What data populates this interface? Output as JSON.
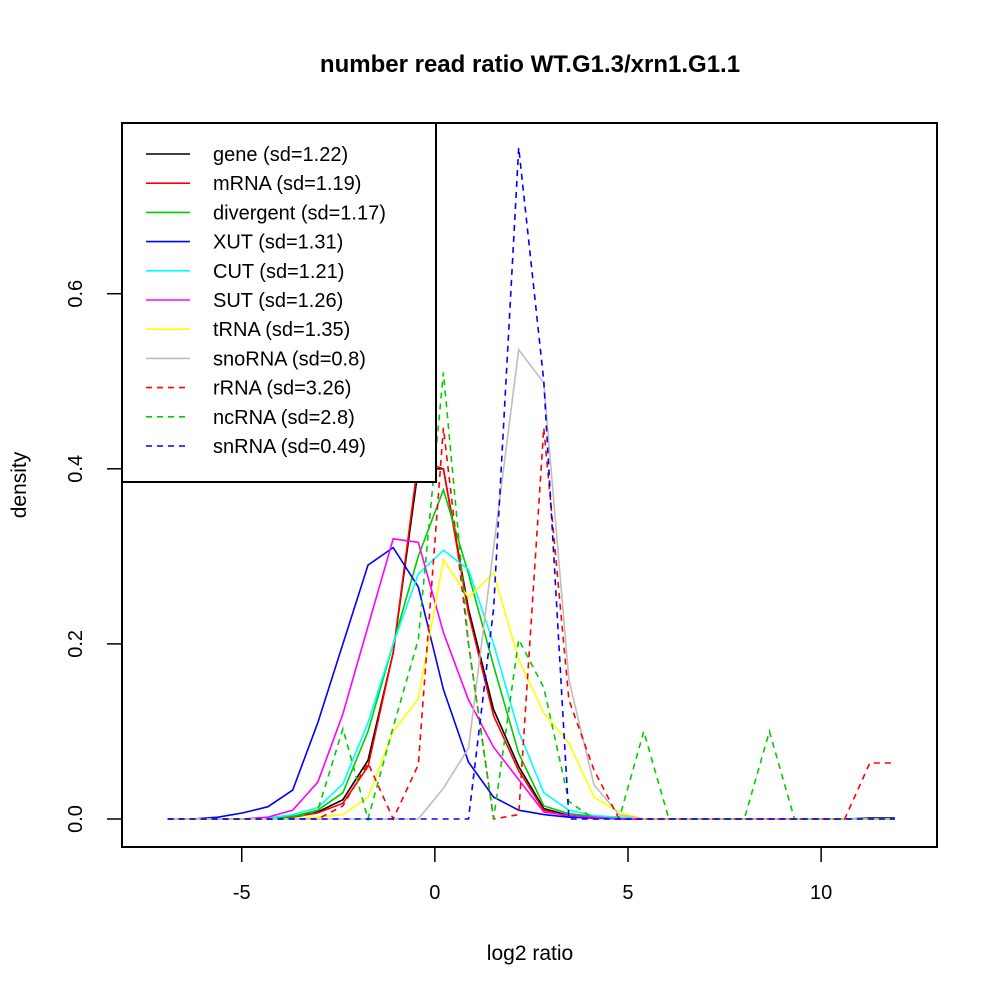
{
  "chart_data": {
    "type": "line",
    "title": "number read ratio WT.G1.3/xrn1.G1.1",
    "xlabel": "log2 ratio",
    "ylabel": "density",
    "xlim": [
      -8.1,
      13.0
    ],
    "ylim": [
      -0.032,
      0.795
    ],
    "xticks": [
      -5,
      0,
      5,
      10
    ],
    "xtick_labels": [
      "-5",
      "0",
      "5",
      "10"
    ],
    "yticks": [
      0.0,
      0.2,
      0.4,
      0.6
    ],
    "ytick_labels": [
      "0.0",
      "0.2",
      "0.4",
      "0.6"
    ],
    "grid": false,
    "legend_position": "top-left",
    "x": [
      -6.92,
      -6.27,
      -5.62,
      -4.97,
      -4.32,
      -3.68,
      -3.03,
      -2.38,
      -1.73,
      -1.08,
      -0.43,
      0.22,
      0.87,
      1.52,
      2.17,
      2.82,
      3.47,
      4.12,
      4.77,
      5.41,
      6.06,
      6.71,
      7.36,
      8.01,
      8.66,
      9.31,
      9.96,
      10.61,
      11.26,
      11.91
    ],
    "series": [
      {
        "name": "gene",
        "legend": "gene (sd=1.22)",
        "color": "#000000",
        "dashed": false,
        "values": [
          0,
          0,
          0,
          0,
          0.001,
          0.003,
          0.008,
          0.022,
          0.067,
          0.19,
          0.4,
          0.4,
          0.24,
          0.125,
          0.06,
          0.012,
          0.004,
          0.002,
          0.001,
          0,
          0,
          0,
          0,
          0,
          0,
          0,
          0,
          0,
          0.001,
          0.001
        ]
      },
      {
        "name": "mRNA",
        "legend": "mRNA (sd=1.19)",
        "color": "#ff0000",
        "dashed": false,
        "values": [
          0,
          0,
          0,
          0,
          0.001,
          0.002,
          0.007,
          0.018,
          0.06,
          0.19,
          0.41,
          0.4,
          0.235,
          0.118,
          0.055,
          0.01,
          0.003,
          0.001,
          0,
          0,
          0,
          0,
          0,
          0,
          0,
          0,
          0,
          0,
          0,
          0
        ]
      },
      {
        "name": "divergent",
        "legend": "divergent (sd=1.17)",
        "color": "#00cd00",
        "dashed": false,
        "values": [
          0,
          0,
          0,
          0,
          0.001,
          0.003,
          0.01,
          0.03,
          0.1,
          0.2,
          0.3,
          0.376,
          0.28,
          0.175,
          0.075,
          0.015,
          0.006,
          0.003,
          0.002,
          0,
          0,
          0,
          0,
          0,
          0,
          0,
          0,
          0,
          0,
          0
        ]
      },
      {
        "name": "XUT",
        "legend": "XUT (sd=1.31)",
        "color": "#0000ff",
        "dashed": false,
        "values": [
          0,
          0,
          0.002,
          0.007,
          0.014,
          0.033,
          0.11,
          0.2,
          0.29,
          0.31,
          0.265,
          0.148,
          0.065,
          0.025,
          0.01,
          0.005,
          0.002,
          0.001,
          0,
          0,
          0,
          0,
          0,
          0,
          0,
          0,
          0,
          0,
          0,
          0
        ]
      },
      {
        "name": "CUT",
        "legend": "CUT (sd=1.21)",
        "color": "#00ffff",
        "dashed": false,
        "values": [
          0,
          0,
          0,
          0,
          0.001,
          0.005,
          0.013,
          0.04,
          0.11,
          0.2,
          0.28,
          0.307,
          0.285,
          0.2,
          0.1,
          0.03,
          0.01,
          0.004,
          0.002,
          0,
          0,
          0,
          0,
          0,
          0,
          0,
          0,
          0,
          0,
          0
        ]
      },
      {
        "name": "SUT",
        "legend": "SUT (sd=1.26)",
        "color": "#ff00ff",
        "dashed": false,
        "values": [
          0,
          0,
          0,
          0,
          0.002,
          0.01,
          0.042,
          0.12,
          0.22,
          0.32,
          0.316,
          0.213,
          0.136,
          0.082,
          0.045,
          0.008,
          0.004,
          0.002,
          0,
          0,
          0,
          0,
          0,
          0,
          0,
          0,
          0,
          0,
          0,
          0
        ]
      },
      {
        "name": "tRNA",
        "legend": "tRNA (sd=1.35)",
        "color": "#ffff00",
        "dashed": false,
        "values": [
          0,
          0,
          0,
          0,
          0,
          0,
          0.002,
          0.005,
          0.025,
          0.1,
          0.137,
          0.296,
          0.253,
          0.281,
          0.182,
          0.121,
          0.087,
          0.025,
          0.008,
          0,
          0,
          0,
          0,
          0,
          0,
          0,
          0,
          0,
          0,
          0
        ]
      },
      {
        "name": "snoRNA",
        "legend": "snoRNA (sd=0.8)",
        "color": "#bebebe",
        "dashed": false,
        "values": [
          0,
          0,
          0,
          0,
          0,
          0,
          0,
          0,
          0,
          0,
          0,
          0.035,
          0.081,
          0.31,
          0.536,
          0.498,
          0.159,
          0.039,
          0.005,
          0,
          0,
          0,
          0,
          0,
          0,
          0,
          0,
          0,
          0,
          0
        ]
      },
      {
        "name": "rRNA",
        "legend": "rRNA (sd=3.26)",
        "color": "#ff0000",
        "dashed": true,
        "values": [
          0,
          0,
          0,
          0,
          0,
          0,
          0,
          0.015,
          0.064,
          0,
          0.062,
          0.447,
          0.2,
          0,
          0.005,
          0.447,
          0.136,
          0.056,
          0,
          0,
          0,
          0,
          0,
          0,
          0,
          0,
          0,
          0,
          0.064,
          0.064
        ]
      },
      {
        "name": "ncRNA",
        "legend": "ncRNA (sd=2.8)",
        "color": "#00cd00",
        "dashed": true,
        "values": [
          0,
          0,
          0,
          0,
          0,
          0,
          0.01,
          0.103,
          0,
          0.105,
          0.205,
          0.51,
          0.2,
          0,
          0.205,
          0.15,
          0.02,
          0,
          0,
          0.1,
          0,
          0,
          0,
          0,
          0.1,
          0,
          0,
          0,
          0,
          0
        ]
      },
      {
        "name": "snRNA",
        "legend": "snRNA (sd=0.49)",
        "color": "#0000ff",
        "dashed": true,
        "values": [
          0,
          0,
          0,
          0,
          0,
          0,
          0,
          0,
          0,
          0,
          0,
          0,
          0,
          0.24,
          0.767,
          0.5,
          0,
          0,
          0,
          0,
          0,
          0,
          0,
          0,
          0,
          0,
          0,
          0,
          0,
          0
        ]
      }
    ]
  }
}
